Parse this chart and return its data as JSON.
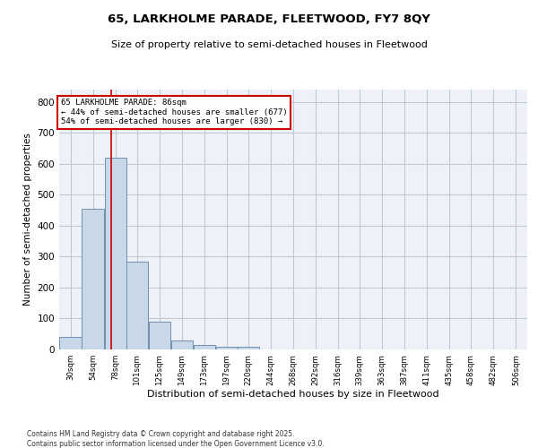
{
  "title1": "65, LARKHOLME PARADE, FLEETWOOD, FY7 8QY",
  "title2": "Size of property relative to semi-detached houses in Fleetwood",
  "xlabel": "Distribution of semi-detached houses by size in Fleetwood",
  "ylabel": "Number of semi-detached properties",
  "footer1": "Contains HM Land Registry data © Crown copyright and database right 2025.",
  "footer2": "Contains public sector information licensed under the Open Government Licence v3.0.",
  "bin_labels": [
    "30sqm",
    "54sqm",
    "78sqm",
    "101sqm",
    "125sqm",
    "149sqm",
    "173sqm",
    "197sqm",
    "220sqm",
    "244sqm",
    "268sqm",
    "292sqm",
    "316sqm",
    "339sqm",
    "363sqm",
    "387sqm",
    "411sqm",
    "435sqm",
    "458sqm",
    "482sqm",
    "506sqm"
  ],
  "bin_edges": [
    30,
    54,
    78,
    101,
    125,
    149,
    173,
    197,
    220,
    244,
    268,
    292,
    316,
    339,
    363,
    387,
    411,
    435,
    458,
    482,
    506
  ],
  "bar_heights": [
    40,
    455,
    620,
    285,
    90,
    30,
    15,
    10,
    8,
    0,
    0,
    0,
    0,
    0,
    0,
    0,
    0,
    0,
    0,
    0,
    0
  ],
  "bar_color": "#c8d8e8",
  "bar_edge_color": "#7090b0",
  "grid_color": "#c0c8d8",
  "bg_color": "#eef2f8",
  "vline_x": 86,
  "vline_color": "#cc0000",
  "annotation_text": "65 LARKHOLME PARADE: 86sqm\n← 44% of semi-detached houses are smaller (677)\n54% of semi-detached houses are larger (830) →",
  "annotation_box_color": "#cc0000",
  "ylim": [
    0,
    840
  ],
  "yticks": [
    0,
    100,
    200,
    300,
    400,
    500,
    600,
    700,
    800
  ]
}
